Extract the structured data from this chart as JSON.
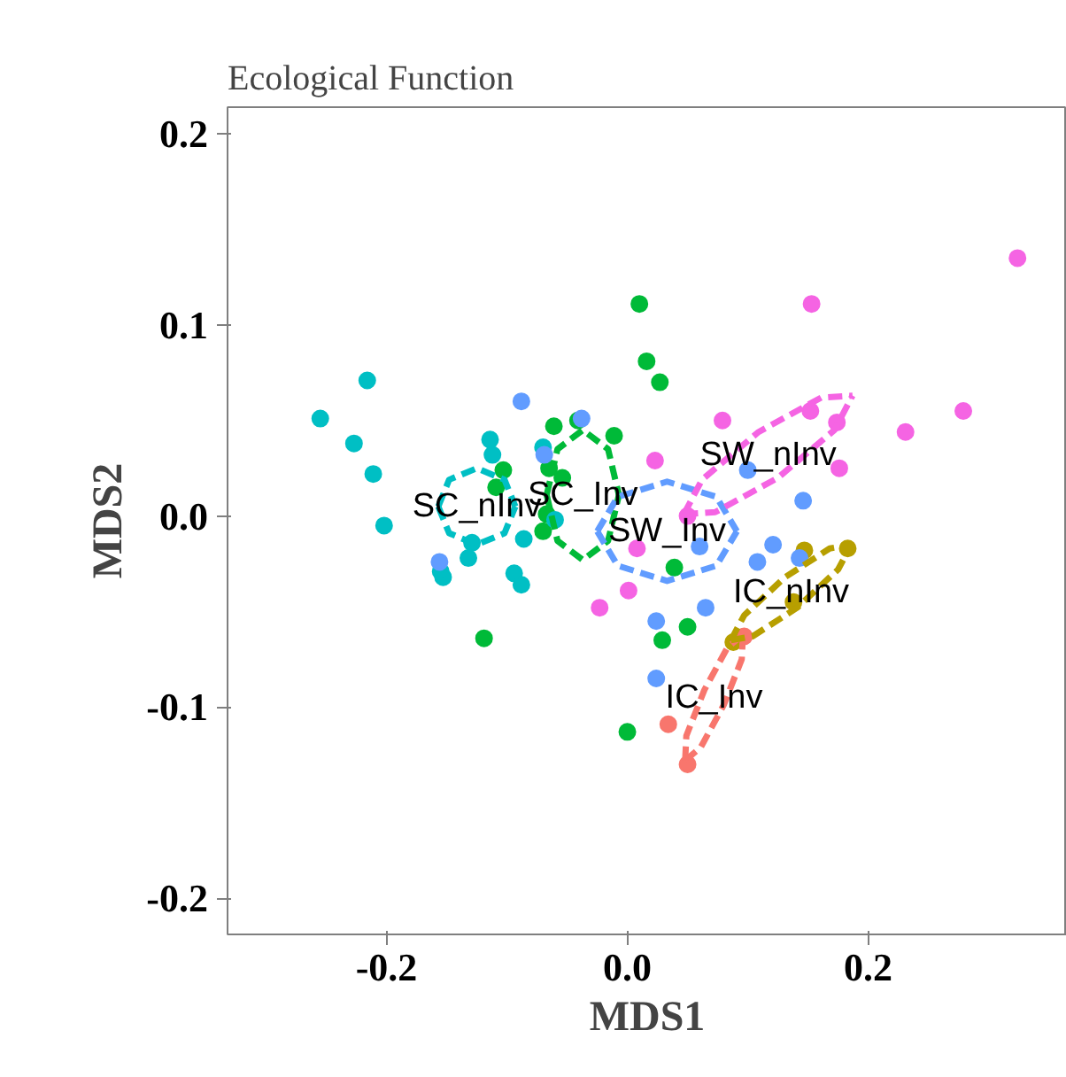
{
  "chart_data": {
    "type": "scatter",
    "title": "Ecological Function",
    "xlabel": "MDS1",
    "ylabel": "MDS2",
    "xlim": [
      -0.332,
      0.365
    ],
    "ylim": [
      -0.219,
      0.214
    ],
    "xticks": [
      {
        "value": -0.2,
        "label": "-0.2"
      },
      {
        "value": 0,
        "label": "0.0"
      },
      {
        "value": 0.2,
        "label": "0.2"
      }
    ],
    "yticks": [
      {
        "value": -0.2,
        "label": "-0.2"
      },
      {
        "value": -0.1,
        "label": "-0.1"
      },
      {
        "value": 0,
        "label": "0.0"
      },
      {
        "value": 0.1,
        "label": "0.1"
      },
      {
        "value": 0.2,
        "label": "0.2"
      }
    ],
    "marker": "circle",
    "series": [
      {
        "color": "#f8766d",
        "x": [
          0.097,
          0.034,
          0.05
        ],
        "values": [
          -0.063,
          -0.109,
          -0.13
        ]
      },
      {
        "color": "#b79f00",
        "x": [
          0.147,
          0.183,
          0.138,
          0.088
        ],
        "values": [
          -0.018,
          -0.017,
          -0.045,
          -0.066
        ]
      },
      {
        "color": "#00ba38",
        "x": [
          0.01,
          0.016,
          0.027,
          -0.061,
          -0.041,
          -0.011,
          -0.103,
          -0.109,
          -0.065,
          -0.054,
          -0.07,
          -0.067,
          0.039,
          0.05,
          0.029,
          -0.119,
          0.0
        ],
        "values": [
          0.111,
          0.081,
          0.07,
          0.047,
          0.05,
          0.042,
          0.024,
          0.015,
          0.025,
          0.02,
          -0.008,
          0.001,
          -0.027,
          -0.058,
          -0.065,
          -0.064,
          -0.113
        ]
      },
      {
        "color": "#00bfc4",
        "x": [
          -0.255,
          -0.216,
          -0.227,
          -0.211,
          -0.202,
          -0.114,
          -0.112,
          -0.07,
          -0.129,
          -0.132,
          -0.153,
          -0.155,
          -0.094,
          -0.088,
          -0.086,
          -0.06
        ],
        "values": [
          0.051,
          0.071,
          0.038,
          0.022,
          -0.005,
          0.04,
          0.032,
          0.036,
          -0.014,
          -0.022,
          -0.032,
          -0.029,
          -0.03,
          -0.036,
          -0.012,
          -0.002
        ]
      },
      {
        "color": "#619cff",
        "x": [
          -0.088,
          -0.038,
          -0.069,
          0.1,
          0.146,
          0.121,
          0.108,
          0.143,
          0.06,
          0.065,
          0.024,
          0.024,
          -0.156
        ],
        "values": [
          0.06,
          0.051,
          0.032,
          0.024,
          0.008,
          -0.015,
          -0.024,
          -0.022,
          -0.016,
          -0.048,
          -0.055,
          -0.085,
          -0.024
        ]
      },
      {
        "color": "#f564e3",
        "x": [
          0.324,
          0.153,
          0.279,
          0.231,
          0.079,
          0.152,
          0.174,
          0.023,
          0.176,
          0.05,
          0.008,
          0.001,
          -0.023
        ],
        "values": [
          0.135,
          0.111,
          0.055,
          0.044,
          0.05,
          0.055,
          0.049,
          0.029,
          0.025,
          0.0,
          -0.017,
          -0.039,
          -0.048
        ]
      },
      {
        "type": "line",
        "name": "IC_Inv",
        "marker": "none",
        "line_style": "dashed",
        "color": "#f8766d",
        "x": [
          0.048,
          0.061,
          0.08,
          0.095,
          0.096
        ],
        "values": [
          -0.128,
          -0.121,
          -0.099,
          -0.075,
          -0.062
        ]
      },
      {
        "type": "line",
        "marker": "none",
        "line_style": "dashed",
        "color": "#f8766d",
        "x": [
          0.048,
          0.049,
          0.064,
          0.083,
          0.096
        ],
        "values": [
          -0.128,
          -0.115,
          -0.091,
          -0.069,
          -0.062
        ]
      },
      {
        "type": "line",
        "name": "IC_nInv",
        "marker": "none",
        "line_style": "dashed",
        "color": "#b79f00",
        "x": [
          0.086,
          0.097,
          0.131,
          0.168,
          0.186
        ],
        "values": [
          -0.065,
          -0.052,
          -0.032,
          -0.017,
          -0.015
        ]
      },
      {
        "type": "line",
        "marker": "none",
        "line_style": "dashed",
        "color": "#b79f00",
        "x": [
          0.086,
          0.104,
          0.141,
          0.175,
          0.186
        ],
        "values": [
          -0.065,
          -0.063,
          -0.048,
          -0.028,
          -0.015
        ]
      },
      {
        "type": "line",
        "name": "SC_Inv",
        "marker": "none",
        "line_style": "dashed",
        "color": "#00ba38",
        "x": [
          -0.067,
          -0.058,
          -0.037,
          -0.016,
          -0.007
        ],
        "values": [
          0.011,
          0.035,
          0.045,
          0.035,
          0.011
        ]
      },
      {
        "type": "line",
        "marker": "none",
        "line_style": "dashed",
        "color": "#00ba38",
        "x": [
          -0.067,
          -0.058,
          -0.037,
          -0.016,
          -0.007
        ],
        "values": [
          0.011,
          -0.013,
          -0.023,
          -0.013,
          0.011
        ]
      },
      {
        "type": "line",
        "name": "SC_nInv",
        "marker": "none",
        "line_style": "dashed",
        "color": "#00bfc4",
        "x": [
          -0.157,
          -0.148,
          -0.125,
          -0.102,
          -0.093
        ],
        "values": [
          0.005,
          0.019,
          0.025,
          0.019,
          0.005
        ]
      },
      {
        "type": "line",
        "marker": "none",
        "line_style": "dashed",
        "color": "#00bfc4",
        "x": [
          -0.157,
          -0.148,
          -0.125,
          -0.102,
          -0.093
        ],
        "values": [
          0.005,
          -0.009,
          -0.015,
          -0.009,
          0.005
        ]
      },
      {
        "type": "line",
        "name": "SW_Inv",
        "marker": "none",
        "line_style": "dashed",
        "color": "#619cff",
        "x": [
          -0.025,
          -0.008,
          0.033,
          0.074,
          0.091
        ],
        "values": [
          -0.008,
          0.01,
          0.018,
          0.01,
          -0.008
        ]
      },
      {
        "type": "line",
        "marker": "none",
        "line_style": "dashed",
        "color": "#619cff",
        "x": [
          -0.025,
          -0.008,
          0.033,
          0.074,
          0.091
        ],
        "values": [
          -0.008,
          -0.026,
          -0.034,
          -0.026,
          -0.008
        ]
      },
      {
        "type": "line",
        "name": "SW_nInv",
        "marker": "none",
        "line_style": "dashed",
        "color": "#f564e3",
        "x": [
          0.047,
          0.062,
          0.109,
          0.161,
          0.187
        ],
        "values": [
          0.001,
          0.019,
          0.044,
          0.062,
          0.063
        ]
      },
      {
        "type": "line",
        "marker": "none",
        "line_style": "dashed",
        "color": "#f564e3",
        "x": [
          0.047,
          0.073,
          0.125,
          0.172,
          0.187
        ],
        "values": [
          0.001,
          0.002,
          0.02,
          0.045,
          0.063
        ]
      }
    ]
  }
}
